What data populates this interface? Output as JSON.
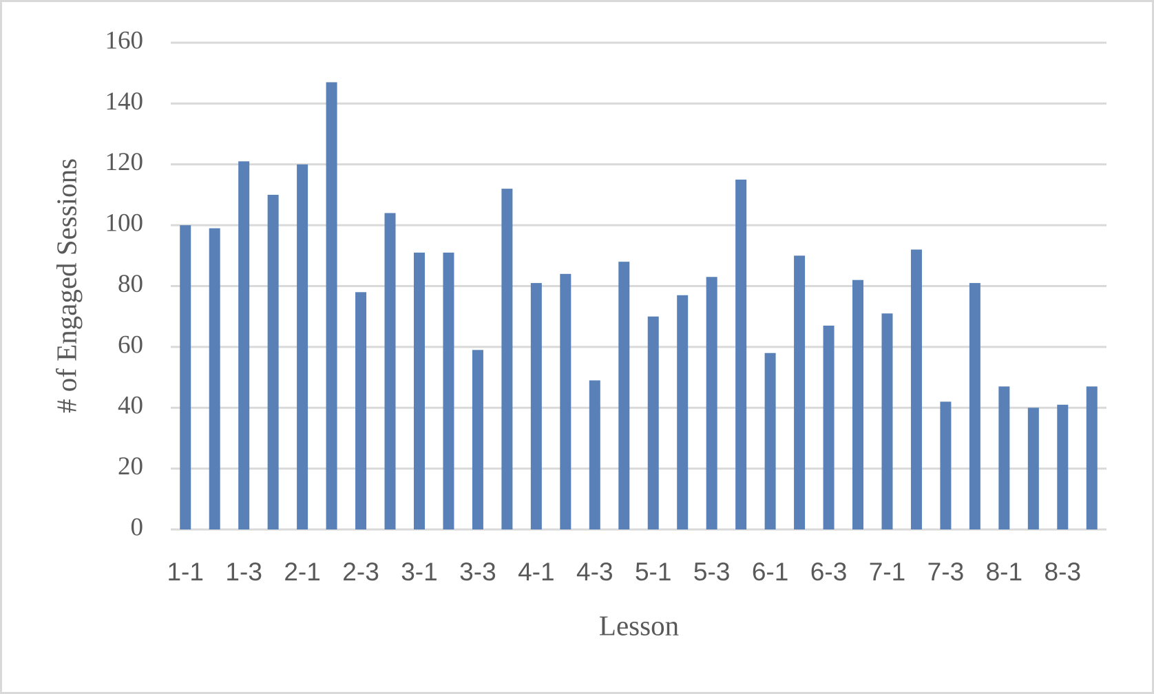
{
  "chart_data": {
    "type": "bar",
    "x_label": "Lesson",
    "y_label": "# of Engaged Sessions",
    "categories": [
      "1-1",
      null,
      "1-3",
      null,
      "2-1",
      null,
      "2-3",
      null,
      "3-1",
      null,
      "3-3",
      null,
      "4-1",
      null,
      "4-3",
      null,
      "5-1",
      null,
      "5-3",
      null,
      "6-1",
      null,
      "6-3",
      null,
      "7-1",
      null,
      "7-3",
      null,
      "8-1",
      null,
      "8-3",
      null
    ],
    "values": [
      100,
      99,
      121,
      110,
      120,
      147,
      78,
      104,
      91,
      91,
      59,
      112,
      81,
      84,
      49,
      88,
      70,
      77,
      83,
      115,
      58,
      90,
      67,
      82,
      71,
      92,
      42,
      81,
      47,
      40,
      41,
      47
    ],
    "color": "#5981b8",
    "ylim": [
      0,
      160
    ],
    "yticks": [
      0,
      20,
      40,
      60,
      80,
      100,
      120,
      140,
      160
    ],
    "grid": true
  }
}
